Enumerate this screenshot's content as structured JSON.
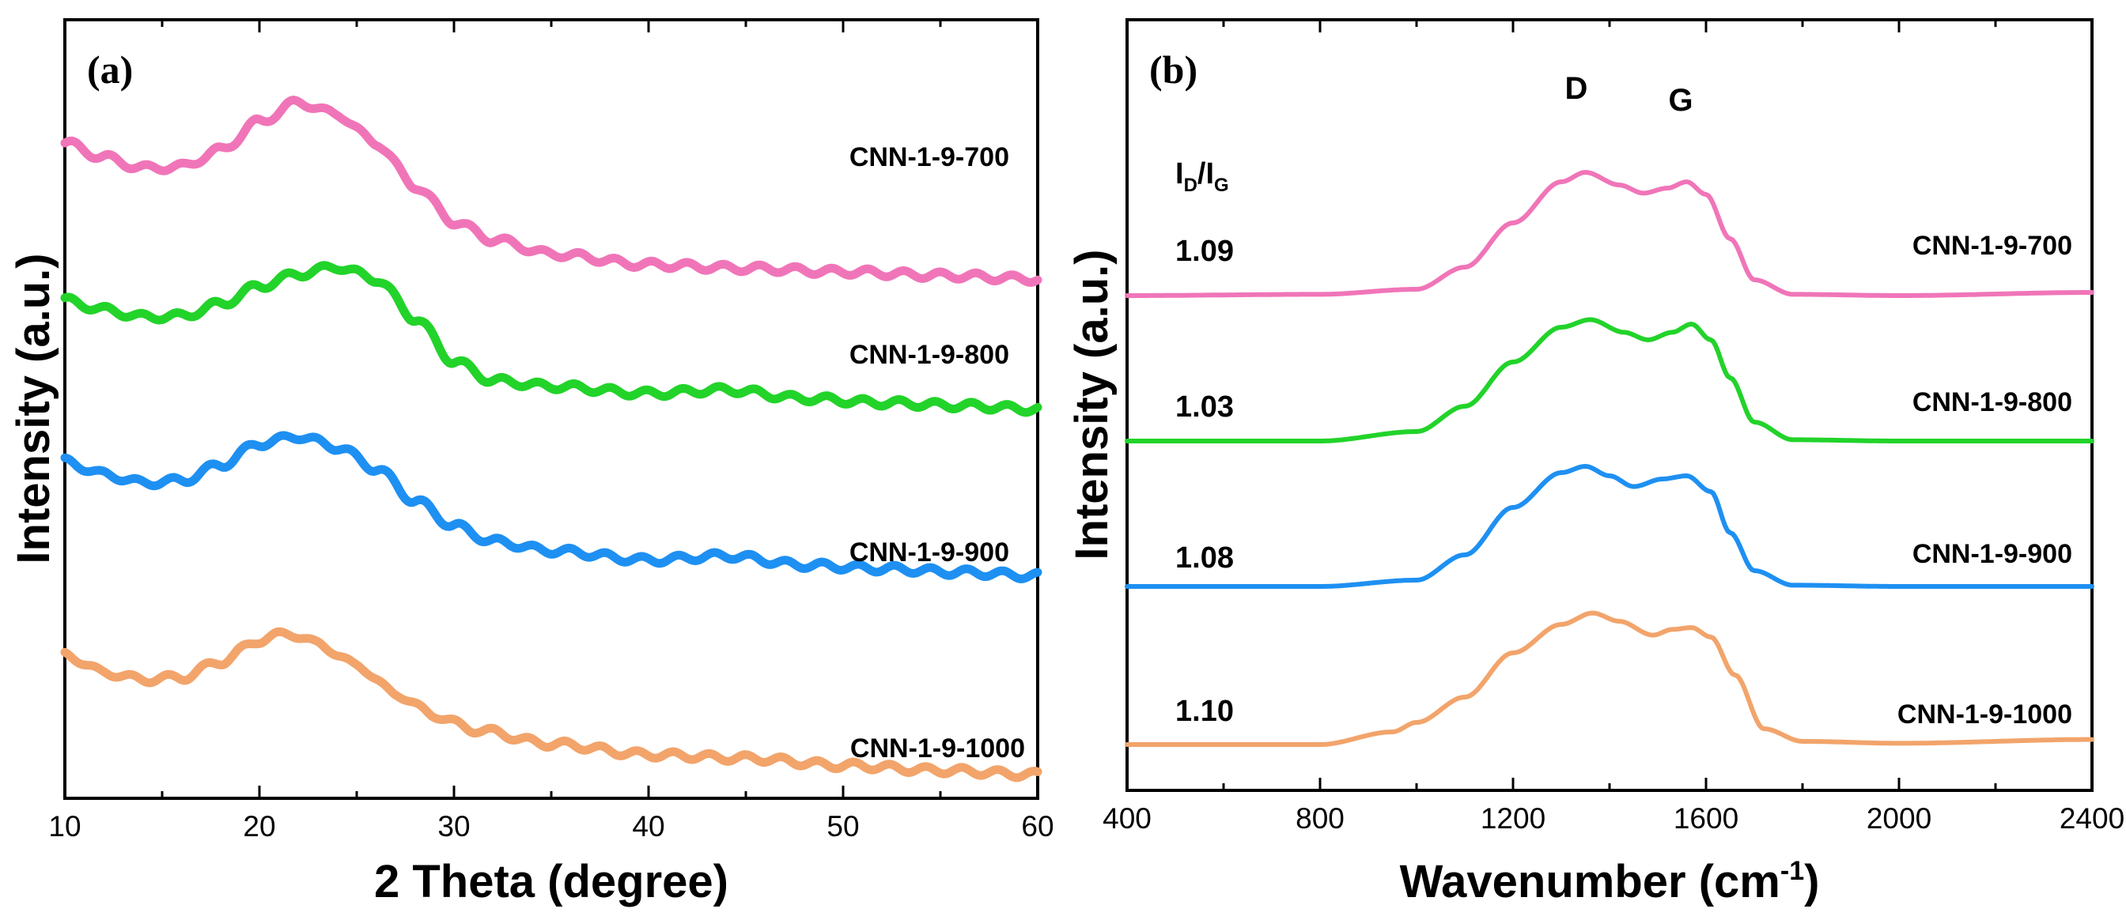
{
  "chart_data": [
    {
      "panel": "(a)",
      "type": "line",
      "xlabel": "2 Theta (degree)",
      "ylabel": "Intensity (a.u.)",
      "xlim": [
        10,
        60
      ],
      "xticks": [
        10,
        20,
        30,
        40,
        50,
        60
      ],
      "ylim": [
        0,
        10
      ],
      "yticks_shown": false,
      "series": [
        {
          "name": "CNN-1-9-700",
          "color": "#F075B8",
          "points": [
            [
              10,
              9.05
            ],
            [
              12,
              8.85
            ],
            [
              14,
              8.7
            ],
            [
              16,
              8.72
            ],
            [
              18,
              8.95
            ],
            [
              20,
              9.35
            ],
            [
              22,
              9.62
            ],
            [
              24,
              9.45
            ],
            [
              26,
              9.05
            ],
            [
              28,
              8.45
            ],
            [
              30,
              7.95
            ],
            [
              32,
              7.7
            ],
            [
              35,
              7.5
            ],
            [
              40,
              7.35
            ],
            [
              45,
              7.3
            ],
            [
              50,
              7.25
            ],
            [
              55,
              7.2
            ],
            [
              60,
              7.15
            ]
          ]
        },
        {
          "name": "CNN-1-9-800",
          "color": "#22D32A",
          "points": [
            [
              10,
              6.85
            ],
            [
              12,
              6.72
            ],
            [
              14,
              6.62
            ],
            [
              16,
              6.63
            ],
            [
              18,
              6.8
            ],
            [
              20,
              7.05
            ],
            [
              22,
              7.22
            ],
            [
              24,
              7.32
            ],
            [
              26,
              7.15
            ],
            [
              28,
              6.6
            ],
            [
              30,
              6.0
            ],
            [
              32,
              5.73
            ],
            [
              35,
              5.65
            ],
            [
              40,
              5.55
            ],
            [
              44,
              5.6
            ],
            [
              48,
              5.48
            ],
            [
              52,
              5.42
            ],
            [
              56,
              5.38
            ],
            [
              60,
              5.33
            ]
          ]
        },
        {
          "name": "CNN-1-9-900",
          "color": "#1E90F2",
          "points": [
            [
              10,
              4.6
            ],
            [
              12,
              4.42
            ],
            [
              14,
              4.3
            ],
            [
              16,
              4.33
            ],
            [
              18,
              4.55
            ],
            [
              20,
              4.85
            ],
            [
              22,
              4.95
            ],
            [
              24,
              4.8
            ],
            [
              26,
              4.5
            ],
            [
              28,
              4.05
            ],
            [
              30,
              3.7
            ],
            [
              32,
              3.48
            ],
            [
              35,
              3.35
            ],
            [
              40,
              3.22
            ],
            [
              44,
              3.28
            ],
            [
              48,
              3.15
            ],
            [
              52,
              3.1
            ],
            [
              56,
              3.05
            ],
            [
              60,
              3.0
            ]
          ]
        },
        {
          "name": "CNN-1-9-1000",
          "color": "#F2A46B",
          "points": [
            [
              10,
              1.9
            ],
            [
              12,
              1.65
            ],
            [
              14,
              1.55
            ],
            [
              16,
              1.58
            ],
            [
              18,
              1.8
            ],
            [
              20,
              2.1
            ],
            [
              21.5,
              2.2
            ],
            [
              23,
              2.05
            ],
            [
              25,
              1.75
            ],
            [
              27,
              1.35
            ],
            [
              29,
              1.05
            ],
            [
              31,
              0.85
            ],
            [
              35,
              0.65
            ],
            [
              40,
              0.5
            ],
            [
              45,
              0.45
            ],
            [
              50,
              0.35
            ],
            [
              55,
              0.28
            ],
            [
              60,
              0.22
            ]
          ]
        }
      ]
    },
    {
      "panel": "(b)",
      "type": "line",
      "xlabel_main": "Wavenumber (cm",
      "xlabel_sup": "-1",
      "xlabel_end": ")",
      "ylabel": "Intensity (a.u.)",
      "xlim": [
        400,
        2400
      ],
      "xticks": [
        400,
        800,
        1200,
        1600,
        2000,
        2400
      ],
      "ylim": [
        0,
        10
      ],
      "yticks_shown": false,
      "peak_labels": {
        "d": "D",
        "g": "G",
        "d_pos": 1350,
        "g_pos": 1580
      },
      "ratio_header": {
        "i": "I",
        "d": "D",
        "slash": "/",
        "i2": "I",
        "g": "G"
      },
      "series": [
        {
          "name": "CNN-1-9-700",
          "color": "#F075B8",
          "id_ig": "1.09",
          "points": [
            [
              400,
              7.2
            ],
            [
              800,
              7.22
            ],
            [
              1000,
              7.3
            ],
            [
              1100,
              7.65
            ],
            [
              1200,
              8.35
            ],
            [
              1300,
              9.0
            ],
            [
              1350,
              9.15
            ],
            [
              1420,
              8.95
            ],
            [
              1470,
              8.82
            ],
            [
              1520,
              8.9
            ],
            [
              1560,
              9.0
            ],
            [
              1600,
              8.8
            ],
            [
              1650,
              8.1
            ],
            [
              1700,
              7.45
            ],
            [
              1780,
              7.22
            ],
            [
              2000,
              7.2
            ],
            [
              2400,
              7.25
            ]
          ]
        },
        {
          "name": "CNN-1-9-800",
          "color": "#22D32A",
          "id_ig": "1.03",
          "points": [
            [
              400,
              4.9
            ],
            [
              800,
              4.9
            ],
            [
              1000,
              5.05
            ],
            [
              1100,
              5.45
            ],
            [
              1200,
              6.15
            ],
            [
              1300,
              6.7
            ],
            [
              1360,
              6.82
            ],
            [
              1430,
              6.62
            ],
            [
              1480,
              6.5
            ],
            [
              1530,
              6.62
            ],
            [
              1570,
              6.75
            ],
            [
              1610,
              6.5
            ],
            [
              1650,
              5.9
            ],
            [
              1700,
              5.2
            ],
            [
              1780,
              4.92
            ],
            [
              2000,
              4.9
            ],
            [
              2400,
              4.9
            ]
          ]
        },
        {
          "name": "CNN-1-9-900",
          "color": "#1E90F2",
          "id_ig": "1.08",
          "points": [
            [
              400,
              2.6
            ],
            [
              800,
              2.6
            ],
            [
              1000,
              2.7
            ],
            [
              1100,
              3.1
            ],
            [
              1200,
              3.85
            ],
            [
              1300,
              4.4
            ],
            [
              1350,
              4.5
            ],
            [
              1400,
              4.35
            ],
            [
              1450,
              4.18
            ],
            [
              1510,
              4.3
            ],
            [
              1560,
              4.35
            ],
            [
              1610,
              4.1
            ],
            [
              1650,
              3.45
            ],
            [
              1700,
              2.85
            ],
            [
              1780,
              2.62
            ],
            [
              2000,
              2.6
            ],
            [
              2400,
              2.6
            ]
          ]
        },
        {
          "name": "CNN-1-9-1000",
          "color": "#F2A46B",
          "id_ig": "1.10",
          "points": [
            [
              400,
              0.1
            ],
            [
              800,
              0.1
            ],
            [
              950,
              0.3
            ],
            [
              1000,
              0.45
            ],
            [
              1100,
              0.85
            ],
            [
              1200,
              1.55
            ],
            [
              1300,
              2.0
            ],
            [
              1365,
              2.18
            ],
            [
              1420,
              2.05
            ],
            [
              1490,
              1.83
            ],
            [
              1530,
              1.92
            ],
            [
              1570,
              1.95
            ],
            [
              1610,
              1.8
            ],
            [
              1660,
              1.2
            ],
            [
              1720,
              0.35
            ],
            [
              1800,
              0.15
            ],
            [
              2000,
              0.12
            ],
            [
              2400,
              0.18
            ]
          ]
        }
      ]
    }
  ]
}
